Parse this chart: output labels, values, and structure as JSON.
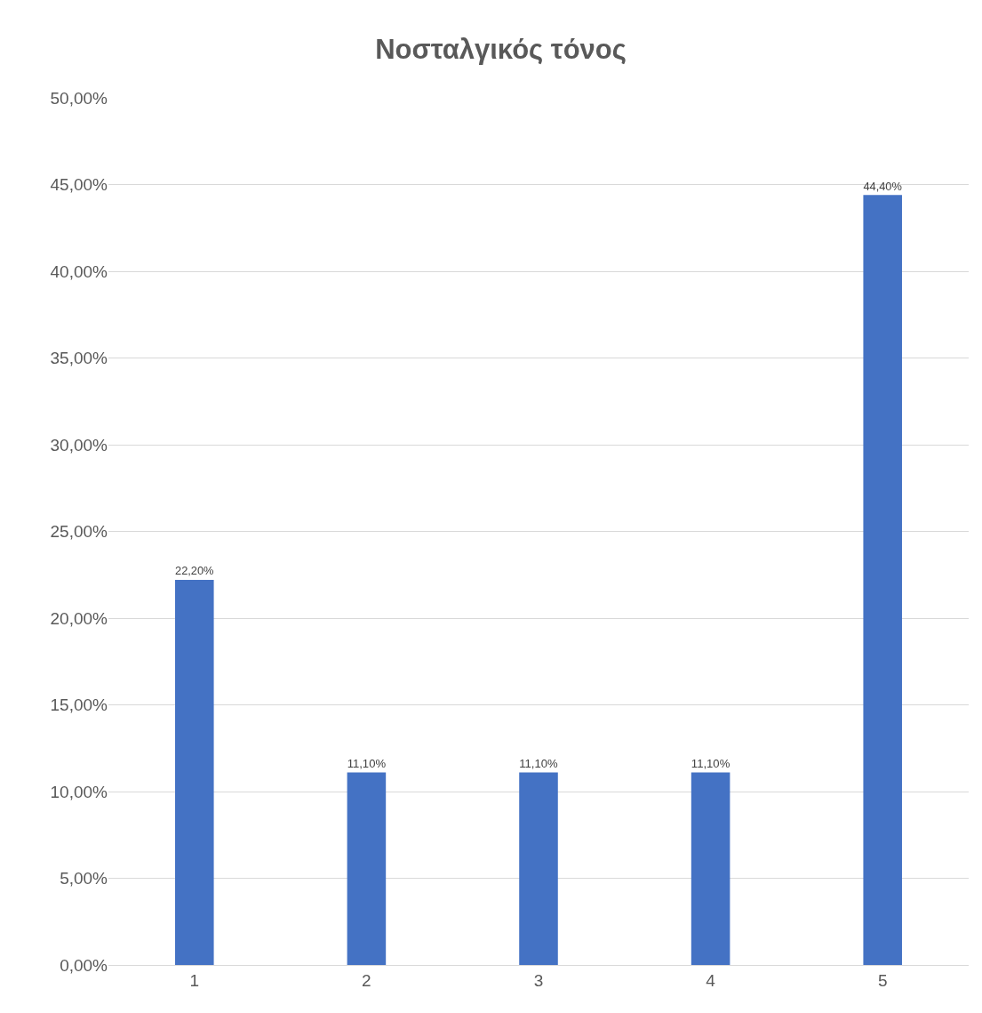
{
  "chart_data": {
    "type": "bar",
    "title": "Νοσταλγικός τόνος",
    "categories": [
      "1",
      "2",
      "3",
      "4",
      "5"
    ],
    "values": [
      22.2,
      11.1,
      11.1,
      11.1,
      44.4
    ],
    "value_labels": [
      "22,20%",
      "11,10%",
      "11,10%",
      "11,10%",
      "44,40%"
    ],
    "color": "#4472c4",
    "ylim": [
      0,
      50
    ],
    "yticks": [
      {
        "value": 0,
        "label": "0,00%"
      },
      {
        "value": 5,
        "label": "5,00%"
      },
      {
        "value": 10,
        "label": "10,00%"
      },
      {
        "value": 15,
        "label": "15,00%"
      },
      {
        "value": 20,
        "label": "20,00%"
      },
      {
        "value": 25,
        "label": "25,00%"
      },
      {
        "value": 30,
        "label": "30,00%"
      },
      {
        "value": 35,
        "label": "35,00%"
      },
      {
        "value": 40,
        "label": "40,00%"
      },
      {
        "value": 45,
        "label": "45,00%"
      },
      {
        "value": 50,
        "label": "50,00%"
      }
    ],
    "grid": "y"
  }
}
